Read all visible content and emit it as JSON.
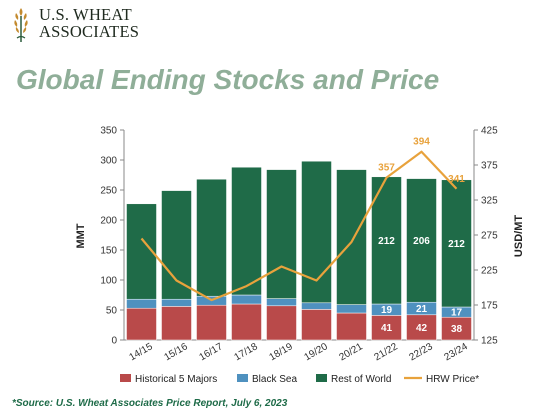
{
  "logo": {
    "line1": "U.S. WHEAT",
    "line2": "ASSOCIATES"
  },
  "title": "Global Ending Stocks and Price",
  "source": "*Source: U.S. Wheat Associates Price Report, July 6, 2023",
  "colors": {
    "historical": "#b94a4a",
    "black_sea": "#4f91bf",
    "rest_of_world": "#1f6b48",
    "price": "#e8a23c",
    "title": "#8fae98"
  },
  "chart_data": {
    "type": "bar",
    "stacked": true,
    "categories": [
      "14/15",
      "15/16",
      "16/17",
      "17/18",
      "18/19",
      "19/20",
      "20/21",
      "21/22",
      "22/23",
      "23/24"
    ],
    "ylabel": "MMT",
    "y2label": "USD/MT",
    "ylim": [
      0,
      350
    ],
    "yticks": [
      0,
      50,
      100,
      150,
      200,
      250,
      300,
      350
    ],
    "y2lim": [
      125,
      425
    ],
    "y2ticks": [
      125,
      175,
      225,
      275,
      325,
      375,
      425
    ],
    "series": [
      {
        "name": "Historical 5 Majors",
        "axis": "left",
        "values": [
          53,
          56,
          58,
          60,
          57,
          51,
          45,
          41,
          42,
          38
        ],
        "labels": [
          "",
          "",
          "",
          "",
          "",
          "",
          "",
          "41",
          "42",
          "38"
        ]
      },
      {
        "name": "Black Sea",
        "axis": "left",
        "values": [
          15,
          12,
          15,
          15,
          12,
          11,
          14,
          19,
          21,
          17
        ],
        "labels": [
          "",
          "",
          "",
          "",
          "",
          "",
          "",
          "19",
          "21",
          "17"
        ]
      },
      {
        "name": "Rest of World",
        "axis": "left",
        "values": [
          159,
          181,
          195,
          213,
          215,
          236,
          225,
          212,
          206,
          212
        ],
        "labels": [
          "",
          "",
          "",
          "",
          "",
          "",
          "",
          "212",
          "206",
          "212"
        ]
      },
      {
        "name": "HRW Price*",
        "axis": "right",
        "type": "line",
        "values": [
          270,
          210,
          182,
          202,
          230,
          210,
          265,
          357,
          394,
          341
        ],
        "labels": [
          "",
          "",
          "",
          "",
          "",
          "",
          "",
          "357",
          "394",
          "341"
        ]
      }
    ],
    "legend_position": "bottom",
    "grid": false
  }
}
